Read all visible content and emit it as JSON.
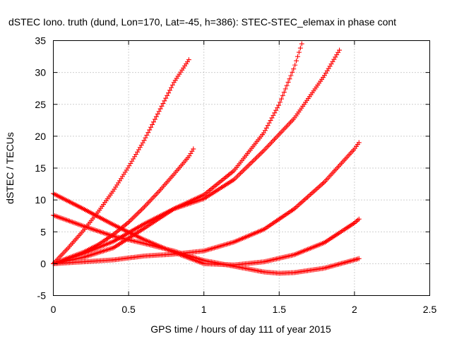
{
  "chart_data": {
    "type": "scatter",
    "title": "dSTEC Iono. truth (dund, Lon=170, Lat=-45, h=386): STEC-STEC_elemax in phase cont",
    "xlabel": "GPS time / hours of day 111 of year 2015",
    "ylabel": "dSTEC  / TECUs",
    "xlim": [
      0,
      2.5
    ],
    "ylim": [
      -5,
      35
    ],
    "xticks": [
      0,
      0.5,
      1,
      1.5,
      2,
      2.5
    ],
    "xtick_labels": [
      "0",
      "0.5",
      "1",
      "1.5",
      "2",
      "2.5"
    ],
    "yticks": [
      -5,
      0,
      5,
      10,
      15,
      20,
      25,
      30,
      35
    ],
    "ytick_labels": [
      "-5",
      "0",
      "5",
      "10",
      "15",
      "20",
      "25",
      "30",
      "35"
    ],
    "grid": true,
    "marker": "+",
    "color": "#ff0000",
    "series": [
      {
        "x": [
          0.0,
          0.1,
          0.2,
          0.3,
          0.4,
          0.5,
          0.6,
          0.7,
          0.8,
          0.9
        ],
        "y": [
          0.0,
          2.5,
          5.2,
          8.2,
          11.5,
          15.2,
          19.2,
          23.8,
          28.4,
          32.0
        ]
      },
      {
        "x": [
          0.0,
          0.1,
          0.2,
          0.3,
          0.4,
          0.5,
          0.6,
          0.7,
          0.8,
          0.9,
          0.93
        ],
        "y": [
          0.0,
          0.9,
          1.8,
          3.0,
          4.6,
          6.5,
          8.8,
          11.3,
          14.0,
          16.8,
          18.0
        ]
      },
      {
        "x": [
          0.0,
          0.2,
          0.4,
          0.6,
          0.8,
          1.0,
          1.2,
          1.4,
          1.5,
          1.6,
          1.65
        ],
        "y": [
          0.0,
          1.6,
          3.5,
          6.2,
          8.6,
          10.8,
          14.6,
          20.6,
          25.0,
          30.8,
          34.5
        ]
      },
      {
        "x": [
          0.0,
          0.2,
          0.4,
          0.6,
          0.8,
          1.0,
          1.2,
          1.4,
          1.6,
          1.8,
          1.9
        ],
        "y": [
          0.0,
          1.0,
          2.5,
          5.5,
          8.6,
          10.2,
          13.2,
          17.8,
          22.8,
          29.5,
          33.5
        ]
      },
      {
        "x": [
          0.0,
          0.2,
          0.4,
          0.6,
          0.8,
          1.0,
          1.2,
          1.4,
          1.6,
          1.8,
          2.0,
          2.03
        ],
        "y": [
          0.0,
          0.3,
          0.6,
          1.2,
          1.5,
          2.0,
          3.4,
          5.4,
          8.6,
          12.8,
          18.0,
          19.0
        ]
      },
      {
        "x": [
          0.0,
          0.2,
          0.4,
          0.6,
          0.8,
          1.0,
          1.2,
          1.4,
          1.6,
          1.8,
          2.0,
          2.03
        ],
        "y": [
          11.0,
          8.6,
          6.1,
          3.8,
          1.8,
          0.0,
          -0.2,
          0.3,
          1.4,
          3.3,
          6.4,
          7.0
        ]
      },
      {
        "x": [
          0.0,
          0.2,
          0.4,
          0.6,
          0.8,
          1.0,
          1.2,
          1.4,
          1.5,
          1.6,
          1.8,
          2.0,
          2.03
        ],
        "y": [
          7.6,
          5.9,
          4.3,
          3.2,
          2.0,
          0.5,
          -0.4,
          -1.3,
          -1.5,
          -1.4,
          -0.7,
          0.6,
          0.8
        ]
      }
    ]
  }
}
